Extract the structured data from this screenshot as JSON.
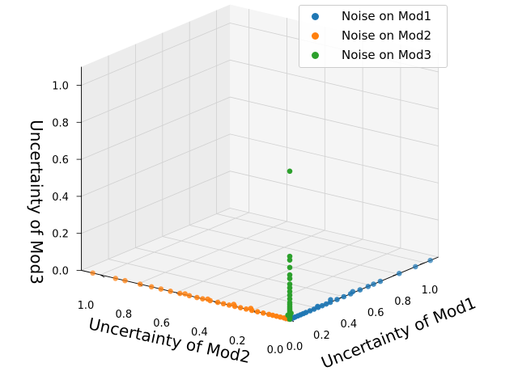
{
  "chart_data": {
    "type": "scatter",
    "projection": "3d",
    "xlabel": "Uncertainty of Mod1",
    "ylabel": "Uncertainty of Mod2",
    "zlabel": "Uncertainty of Mod3",
    "xlim": [
      0,
      1.1
    ],
    "ylim": [
      0,
      1.1
    ],
    "zlim": [
      0,
      1.1
    ],
    "x_ticks": [
      "0.0",
      "0.2",
      "0.4",
      "0.6",
      "0.8",
      "1.0"
    ],
    "y_ticks": [
      "0.0",
      "0.2",
      "0.4",
      "0.6",
      "0.8",
      "1.0"
    ],
    "z_ticks": [
      "0.0",
      "0.2",
      "0.4",
      "0.6",
      "0.8",
      "1.0"
    ],
    "grid": true,
    "legend_position": "top-right",
    "series": [
      {
        "name": "Noise on Mod1",
        "color": "#1f77b4",
        "points": [
          [
            0.93,
            0.0,
            0.0
          ],
          [
            1.04,
            0.0,
            0.0
          ],
          [
            0.81,
            0.0,
            0.0
          ],
          [
            0.67,
            0.0,
            0.0
          ],
          [
            0.52,
            0.0,
            0.0
          ],
          [
            0.58,
            0.0,
            0.0
          ],
          [
            0.45,
            0.0,
            0.0
          ],
          [
            0.4,
            0.0,
            0.0
          ],
          [
            0.35,
            0.0,
            0.0
          ],
          [
            0.3,
            0.0,
            0.0
          ],
          [
            0.27,
            0.0,
            0.0
          ],
          [
            0.24,
            0.0,
            0.0
          ],
          [
            0.21,
            0.0,
            0.0
          ],
          [
            0.18,
            0.0,
            0.0
          ],
          [
            0.15,
            0.0,
            0.0
          ],
          [
            0.12,
            0.0,
            0.0
          ],
          [
            0.1,
            0.0,
            0.0
          ],
          [
            0.08,
            0.0,
            0.0
          ],
          [
            0.06,
            0.0,
            0.0
          ],
          [
            0.04,
            0.0,
            0.0
          ],
          [
            0.03,
            0.0,
            0.0
          ],
          [
            0.02,
            0.0,
            0.0
          ],
          [
            0.01,
            0.0,
            0.0
          ],
          [
            0.005,
            0.0,
            0.0
          ],
          [
            0.33,
            0.02,
            0.0
          ],
          [
            0.48,
            0.01,
            0.0
          ],
          [
            0.22,
            0.01,
            0.0
          ],
          [
            0.62,
            0.0,
            0.0
          ]
        ]
      },
      {
        "name": "Noise on Mod2",
        "color": "#ff7f0e",
        "points": [
          [
            0.0,
            1.04,
            0.0
          ],
          [
            0.0,
            0.92,
            0.0
          ],
          [
            0.0,
            0.87,
            0.0
          ],
          [
            0.0,
            0.79,
            0.0
          ],
          [
            0.0,
            0.73,
            0.0
          ],
          [
            0.0,
            0.68,
            0.0
          ],
          [
            0.0,
            0.63,
            0.0
          ],
          [
            0.0,
            0.58,
            0.0
          ],
          [
            0.0,
            0.53,
            0.0
          ],
          [
            0.0,
            0.49,
            0.0
          ],
          [
            0.0,
            0.46,
            0.0
          ],
          [
            0.0,
            0.42,
            0.0
          ],
          [
            0.0,
            0.38,
            0.0
          ],
          [
            0.0,
            0.35,
            0.0
          ],
          [
            0.0,
            0.32,
            0.0
          ],
          [
            0.0,
            0.29,
            0.0
          ],
          [
            0.0,
            0.26,
            0.0
          ],
          [
            0.0,
            0.23,
            0.0
          ],
          [
            0.0,
            0.2,
            0.0
          ],
          [
            0.0,
            0.17,
            0.0
          ],
          [
            0.0,
            0.14,
            0.0
          ],
          [
            0.0,
            0.11,
            0.0
          ],
          [
            0.0,
            0.09,
            0.0
          ],
          [
            0.0,
            0.07,
            0.0
          ],
          [
            0.0,
            0.05,
            0.0
          ],
          [
            0.0,
            0.03,
            0.0
          ],
          [
            0.0,
            0.02,
            0.0
          ],
          [
            0.0,
            0.01,
            0.0
          ],
          [
            0.01,
            0.56,
            0.0
          ],
          [
            0.02,
            0.31,
            0.0
          ],
          [
            0.01,
            0.44,
            0.0
          ],
          [
            0.02,
            0.22,
            0.0
          ]
        ]
      },
      {
        "name": "Noise on Mod3",
        "color": "#2ca02c",
        "points": [
          [
            0.0,
            0.0,
            0.8
          ],
          [
            0.0,
            0.0,
            0.34
          ],
          [
            0.0,
            0.0,
            0.32
          ],
          [
            0.0,
            0.0,
            0.28
          ],
          [
            0.0,
            0.0,
            0.24
          ],
          [
            0.0,
            0.0,
            0.22
          ],
          [
            0.0,
            0.0,
            0.19
          ],
          [
            0.0,
            0.0,
            0.17
          ],
          [
            0.0,
            0.0,
            0.15
          ],
          [
            0.0,
            0.0,
            0.13
          ],
          [
            0.0,
            0.0,
            0.11
          ],
          [
            0.0,
            0.0,
            0.09
          ],
          [
            0.0,
            0.0,
            0.08
          ],
          [
            0.0,
            0.0,
            0.07
          ],
          [
            0.0,
            0.0,
            0.06
          ],
          [
            0.0,
            0.0,
            0.05
          ],
          [
            0.0,
            0.0,
            0.04
          ],
          [
            0.0,
            0.0,
            0.03
          ],
          [
            0.0,
            0.0,
            0.02
          ],
          [
            0.0,
            0.0,
            0.015
          ],
          [
            0.0,
            0.0,
            0.01
          ],
          [
            0.0,
            0.0,
            0.005
          ],
          [
            0.0,
            0.0,
            0.0
          ],
          [
            0.01,
            0.0,
            0.03
          ],
          [
            0.0,
            0.01,
            0.02
          ],
          [
            0.01,
            0.01,
            0.01
          ]
        ]
      }
    ]
  }
}
